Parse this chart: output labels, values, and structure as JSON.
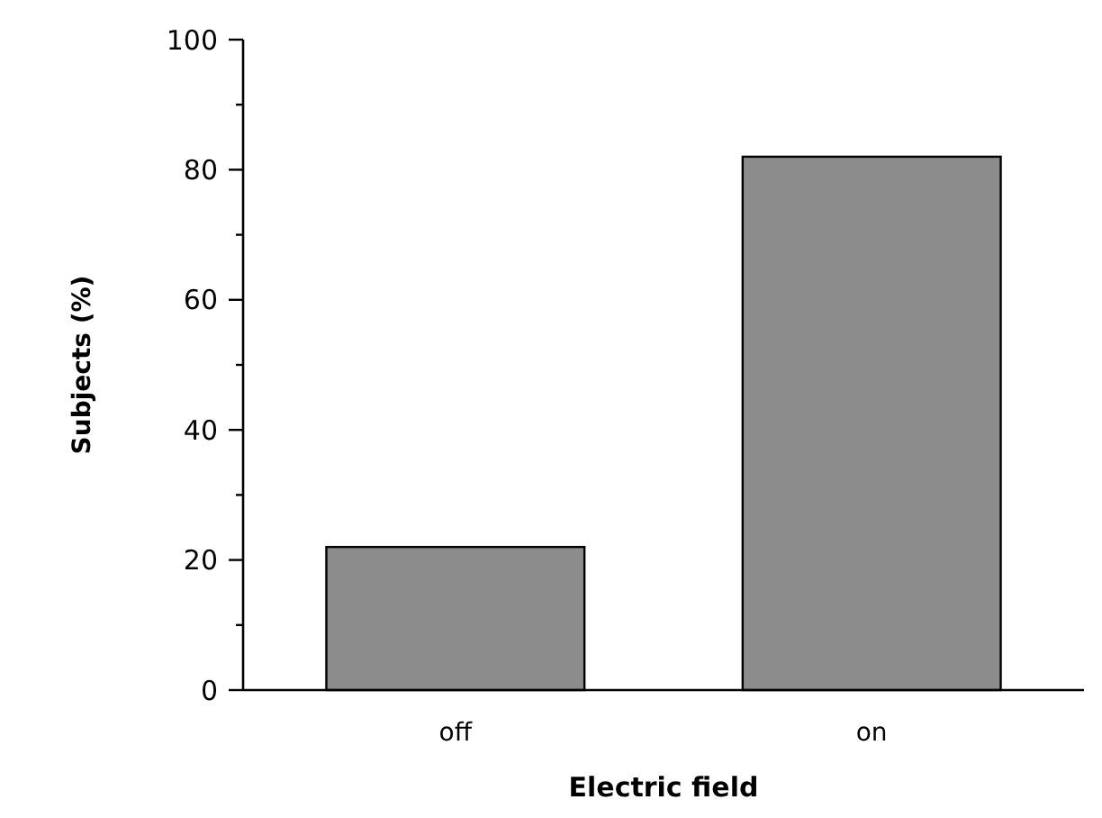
{
  "chart_data": {
    "type": "bar",
    "xlabel": "Electric field",
    "ylabel": "Subjects (%)",
    "categories": [
      "off",
      "on"
    ],
    "values": [
      22,
      82
    ],
    "color": "#8c8c8c",
    "ylim": [
      0,
      100
    ],
    "yticks": [
      0,
      {
        "value": 10,
        "label": null
      },
      20,
      {
        "value": 30,
        "label": null
      },
      40,
      {
        "value": 50,
        "label": null
      },
      60,
      {
        "value": 70,
        "label": null
      },
      80,
      {
        "value": 90,
        "label": null
      },
      100
    ],
    "grid": false
  }
}
